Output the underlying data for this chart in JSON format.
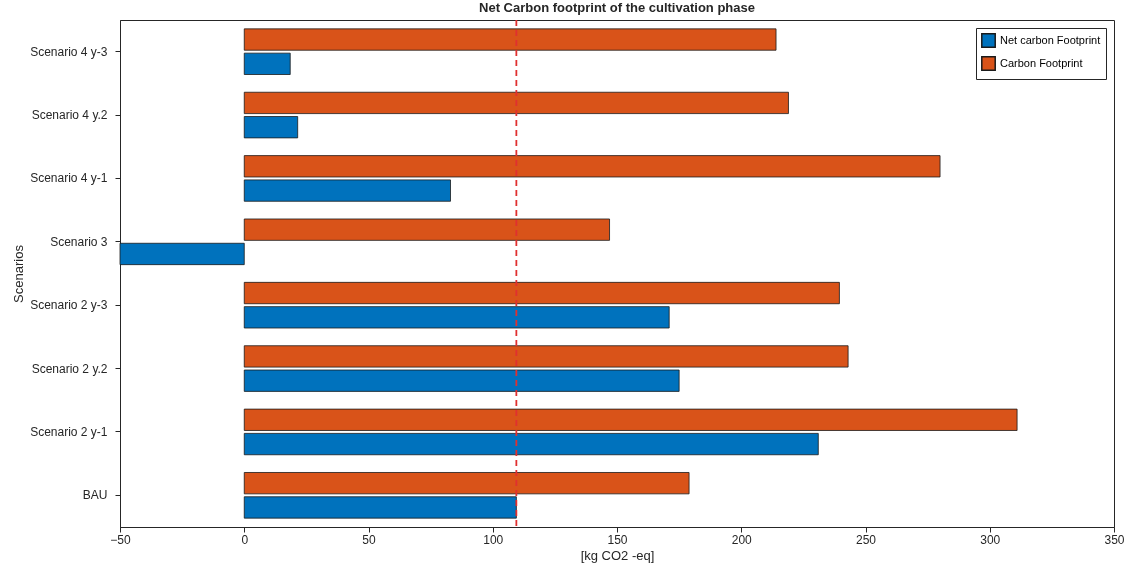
{
  "chart_data": {
    "type": "bar",
    "orientation": "horizontal",
    "title": "Net Carbon footprint of the cultivation phase",
    "xlabel": "[kg CO2 -eq]",
    "ylabel": "Scenarios",
    "categories": [
      "Scenario 4 y-3",
      "Scenario 4 y.2",
      "Scenario 4 y-1",
      "Scenario 3",
      "Scenario 2 y-3",
      "Scenario 2 y.2",
      "Scenario 2 y-1",
      "BAU"
    ],
    "series": [
      {
        "name": "Net carbon Footprint",
        "color": "#0072bd",
        "values": [
          18.5,
          21.5,
          83,
          -50,
          171,
          175,
          231,
          109.5
        ]
      },
      {
        "name": "Carbon Footprint",
        "color": "#d95319",
        "values": [
          214,
          219,
          280,
          147,
          239.5,
          243,
          311,
          179
        ]
      }
    ],
    "xlim": [
      -50,
      350
    ],
    "xticks": [
      -50,
      0,
      50,
      100,
      150,
      200,
      250,
      300,
      350
    ],
    "ref_lines": [
      {
        "axis": "x",
        "value": 109.5,
        "color": "#e03030",
        "line_style": "dashed"
      }
    ],
    "legend": "top right",
    "grid": false
  }
}
